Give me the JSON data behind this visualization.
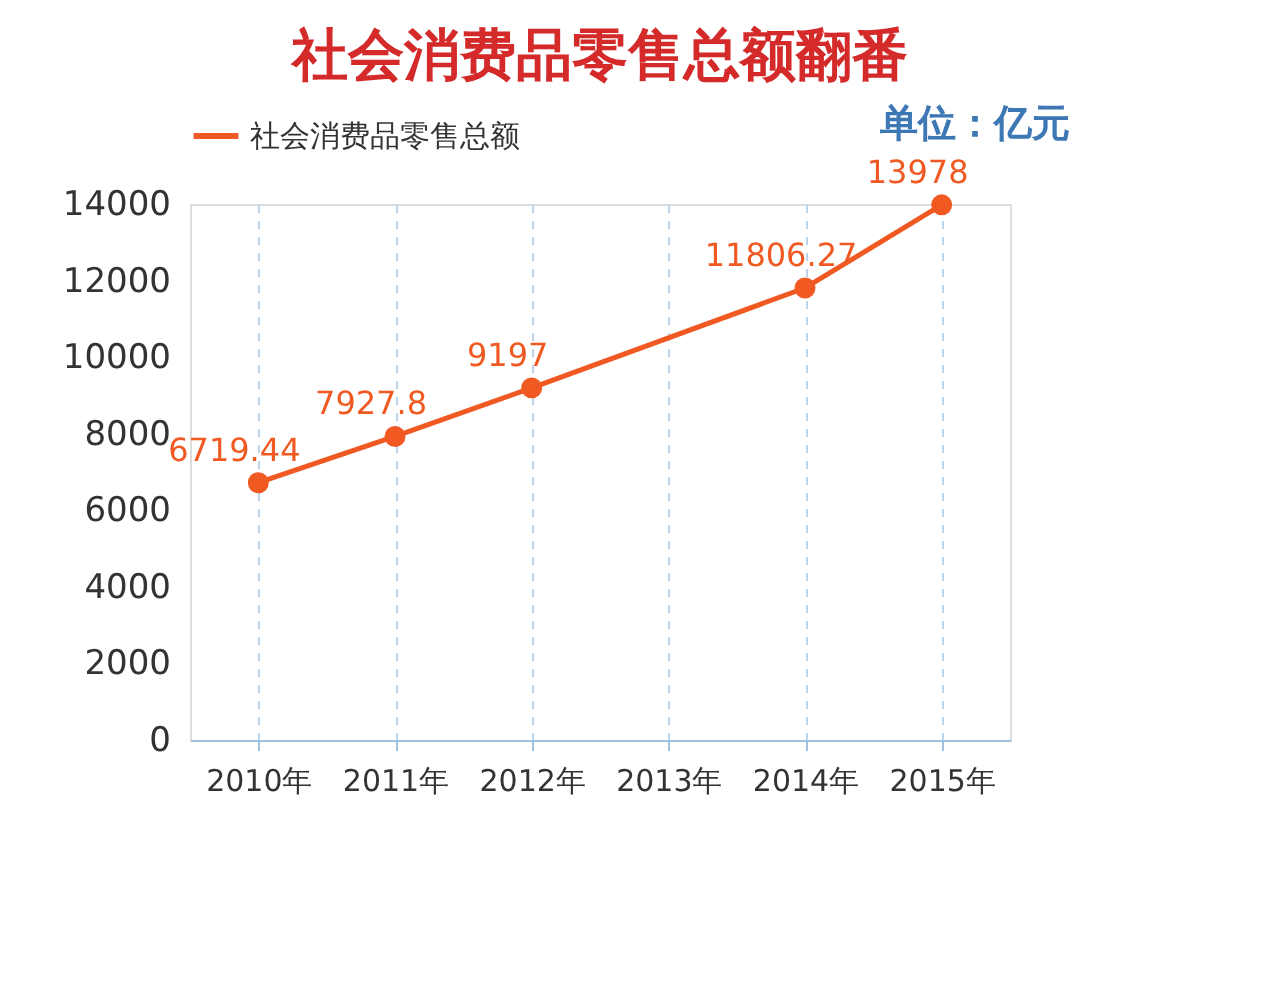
{
  "chart_data": {
    "type": "line",
    "title": "社会消费品零售总额翻番",
    "categories": [
      "2010年",
      "2011年",
      "2012年",
      "2013年",
      "2014年",
      "2015年"
    ],
    "series": [
      {
        "name": "社会消费品零售总额",
        "color": "#f05a22",
        "values": [
          6719.44,
          7927.8,
          9197,
          null,
          11806.27,
          13978
        ]
      }
    ],
    "ylim": [
      0,
      14000
    ],
    "yticks": [
      0,
      2000,
      4000,
      6000,
      8000,
      10000,
      12000,
      14000
    ],
    "grid": "x",
    "legend": "top left",
    "marker": "circle",
    "line_style": "solid",
    "data_labels": true,
    "annotations": [
      "单位：亿元"
    ]
  }
}
